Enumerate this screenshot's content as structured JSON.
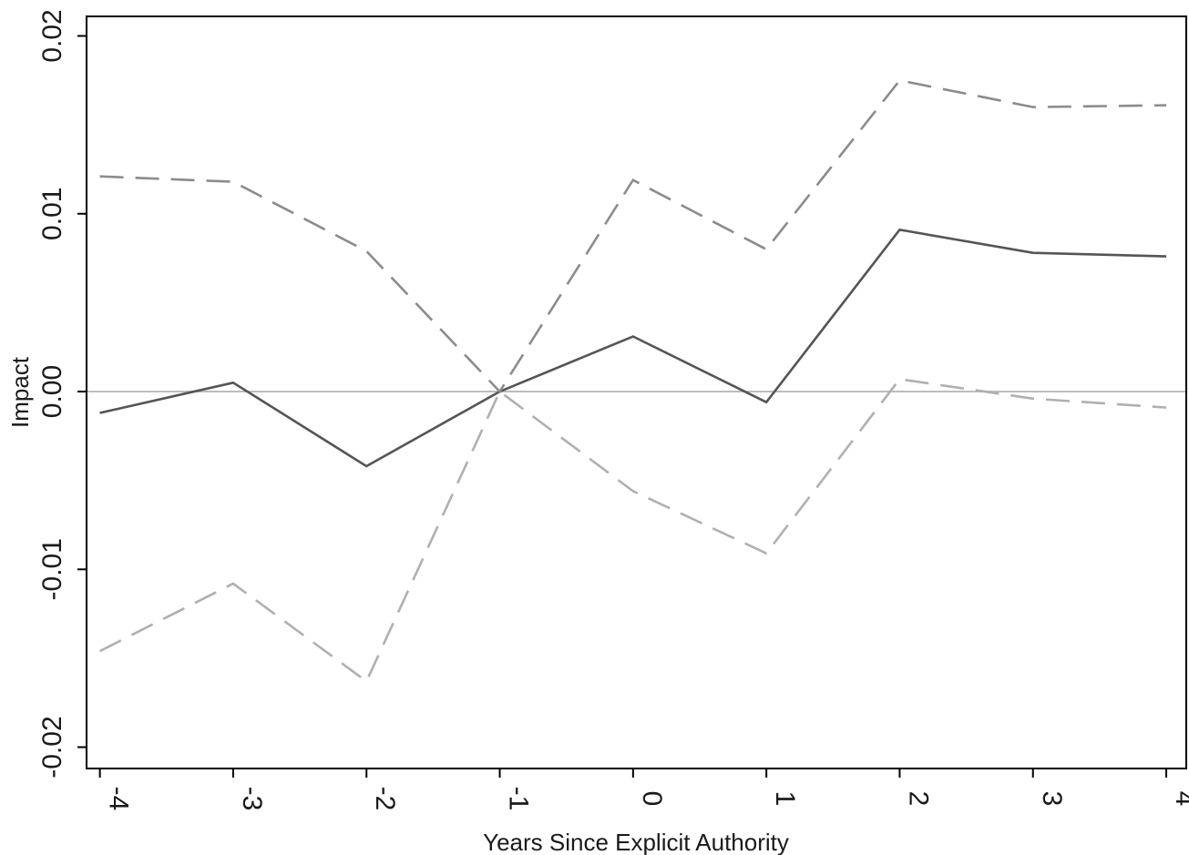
{
  "chart_data": {
    "type": "line",
    "xlabel": "Years Since Explicit Authority",
    "ylabel": "Impact",
    "x": [
      -4,
      -3,
      -2,
      -1,
      0,
      1,
      2,
      3,
      4
    ],
    "xlim": [
      -4.1,
      4.15
    ],
    "ylim": [
      -0.0212,
      0.0211
    ],
    "yticks": [
      -0.02,
      -0.01,
      0.0,
      0.01,
      0.02
    ],
    "ytick_labels": [
      "-0.02",
      "-0.01",
      "0.00",
      "0.01",
      "0.02"
    ],
    "xticks": [
      -4,
      -3,
      -2,
      -1,
      0,
      1,
      2,
      3,
      4
    ],
    "xtick_labels": [
      "-4",
      "-3",
      "-2",
      "-1",
      "0",
      "1",
      "2",
      "3",
      "4"
    ],
    "reference_line_y": 0,
    "grid": false,
    "series": [
      {
        "role": "estimate",
        "style": "solid",
        "color": "#555555",
        "values": [
          -0.0012,
          0.0005,
          -0.0042,
          0.0,
          0.0031,
          -0.0006,
          0.0091,
          0.0078,
          0.0076
        ]
      },
      {
        "role": "upper-bound",
        "style": "dashed",
        "color": "#8c8c8c",
        "values": [
          0.0121,
          0.0118,
          0.0079,
          0.0,
          0.0119,
          0.008,
          0.0175,
          0.016,
          0.0161
        ]
      },
      {
        "role": "lower-bound",
        "style": "dashed",
        "color": "#b0b0b0",
        "values": [
          -0.0146,
          -0.0108,
          -0.0163,
          0.0,
          -0.0056,
          -0.0091,
          0.0007,
          -0.0004,
          -0.0009
        ]
      }
    ],
    "colors": {
      "axis": "#000000",
      "reference_line": "#bdbdbd"
    }
  }
}
